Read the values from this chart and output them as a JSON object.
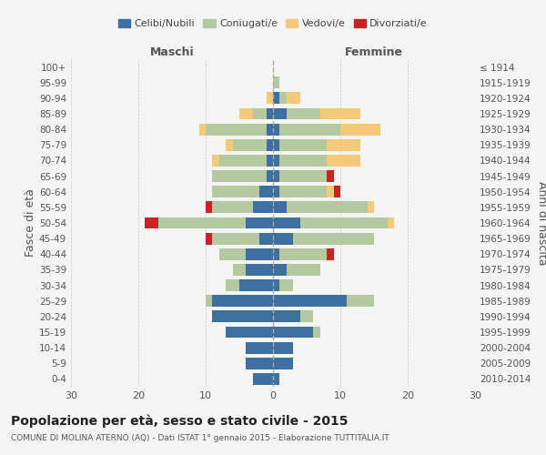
{
  "age_groups": [
    "100+",
    "95-99",
    "90-94",
    "85-89",
    "80-84",
    "75-79",
    "70-74",
    "65-69",
    "60-64",
    "55-59",
    "50-54",
    "45-49",
    "40-44",
    "35-39",
    "30-34",
    "25-29",
    "20-24",
    "15-19",
    "10-14",
    "5-9",
    "0-4"
  ],
  "birth_years": [
    "≤ 1914",
    "1915-1919",
    "1920-1924",
    "1925-1929",
    "1930-1934",
    "1935-1939",
    "1940-1944",
    "1945-1949",
    "1950-1954",
    "1955-1959",
    "1960-1964",
    "1965-1969",
    "1970-1974",
    "1975-1979",
    "1980-1984",
    "1985-1989",
    "1990-1994",
    "1995-1999",
    "2000-2004",
    "2005-2009",
    "2010-2014"
  ],
  "colors": {
    "celibi": "#3d6fa0",
    "coniugati": "#b5c9a0",
    "vedovi": "#f5c97a",
    "divorziati": "#cc2222"
  },
  "maschi": {
    "celibi": [
      0,
      0,
      0,
      1,
      1,
      1,
      1,
      1,
      2,
      3,
      4,
      2,
      4,
      4,
      5,
      9,
      9,
      7,
      4,
      4,
      3
    ],
    "coniugati": [
      0,
      0,
      0,
      2,
      9,
      5,
      7,
      8,
      7,
      6,
      13,
      7,
      4,
      2,
      2,
      1,
      0,
      0,
      0,
      0,
      0
    ],
    "vedovi": [
      0,
      0,
      1,
      2,
      1,
      1,
      1,
      0,
      0,
      0,
      0,
      0,
      0,
      0,
      0,
      0,
      0,
      0,
      0,
      0,
      0
    ],
    "divorziati": [
      0,
      0,
      0,
      0,
      0,
      0,
      0,
      0,
      0,
      1,
      2,
      1,
      0,
      0,
      0,
      0,
      0,
      0,
      0,
      0,
      0
    ]
  },
  "femmine": {
    "celibi": [
      0,
      0,
      1,
      2,
      1,
      1,
      1,
      1,
      1,
      2,
      4,
      3,
      1,
      2,
      1,
      11,
      4,
      6,
      3,
      3,
      1
    ],
    "coniugati": [
      0,
      1,
      1,
      5,
      9,
      7,
      7,
      7,
      7,
      12,
      13,
      12,
      7,
      5,
      2,
      4,
      2,
      1,
      0,
      0,
      0
    ],
    "vedovi": [
      0,
      0,
      2,
      6,
      6,
      5,
      5,
      0,
      1,
      1,
      1,
      0,
      0,
      0,
      0,
      0,
      0,
      0,
      0,
      0,
      0
    ],
    "divorziati": [
      0,
      0,
      0,
      0,
      0,
      0,
      0,
      1,
      1,
      0,
      0,
      0,
      1,
      0,
      0,
      0,
      0,
      0,
      0,
      0,
      0
    ]
  },
  "xlim": 30,
  "title": "Popolazione per età, sesso e stato civile - 2015",
  "subtitle": "COMUNE DI MOLINA ATERNO (AQ) - Dati ISTAT 1° gennaio 2015 - Elaborazione TUTTITALIA.IT",
  "ylabel_left": "Fasce di età",
  "ylabel_right": "Anni di nascita",
  "xlabel_maschi": "Maschi",
  "xlabel_femmine": "Femmine",
  "legend_labels": [
    "Celibi/Nubili",
    "Coniugati/e",
    "Vedovi/e",
    "Divorziati/e"
  ],
  "bg_color": "#f5f5f5",
  "grid_color": "#cccccc"
}
